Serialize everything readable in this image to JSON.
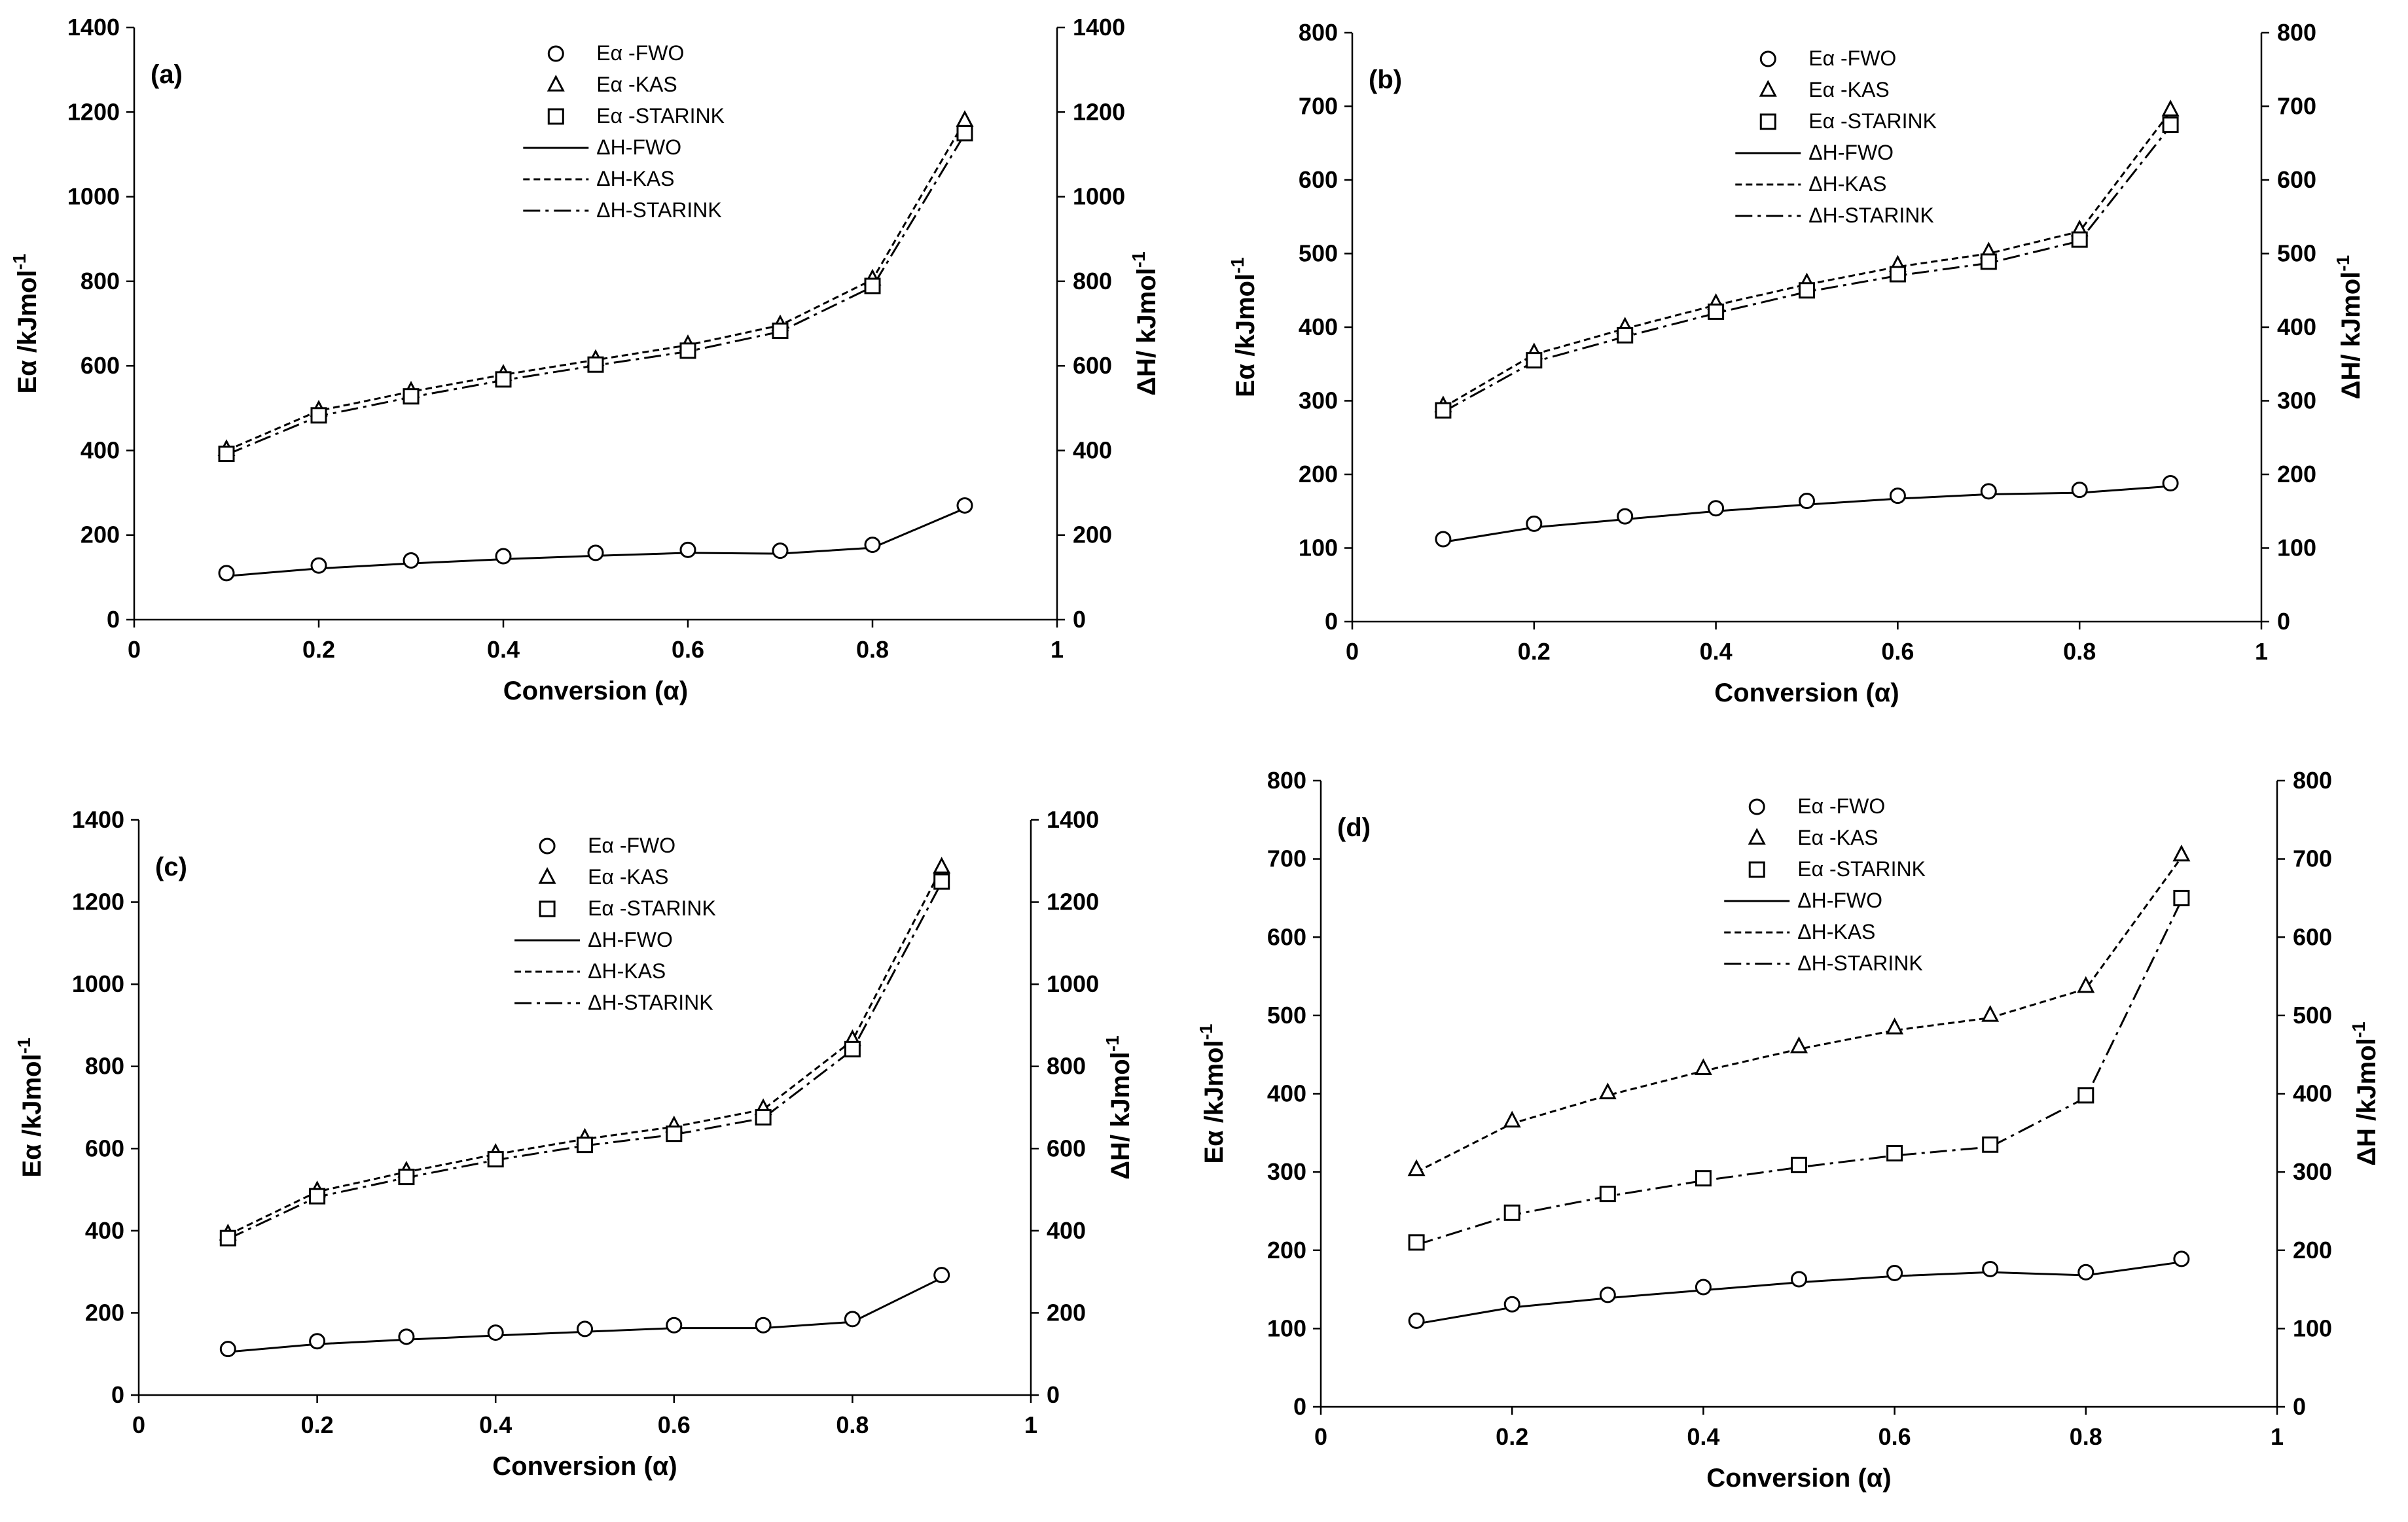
{
  "figure": {
    "panels": [
      "a",
      "b",
      "c",
      "d"
    ]
  },
  "chart_data": [
    {
      "type": "line",
      "panel_label": "(a)",
      "xlabel": "Conversion (α)",
      "ylabel_left": "Eα /kJmol-1",
      "ylabel_left_main": "Eα /kJmol",
      "ylabel_left_sup": "-1",
      "ylabel_right": "ΔH/ kJmol-1",
      "ylabel_right_main": "ΔH/ kJmol",
      "ylabel_right_sup": "-1",
      "xlim": [
        0,
        1
      ],
      "ylim": [
        0,
        1400
      ],
      "x_ticks": [
        "0",
        "0.2",
        "0.4",
        "0.6",
        "0.8",
        "1"
      ],
      "y_ticks": [
        "0",
        "200",
        "400",
        "600",
        "800",
        "1000",
        "1200",
        "1400"
      ],
      "legend_position": "top-center",
      "x": [
        0.1,
        0.2,
        0.3,
        0.4,
        0.5,
        0.6,
        0.7,
        0.8,
        0.9
      ],
      "series": [
        {
          "name": "Eα -FWO",
          "kind": "marker",
          "marker": "circle",
          "values": [
            110,
            128,
            140,
            150,
            158,
            165,
            163,
            177,
            270
          ]
        },
        {
          "name": "Eα -KAS",
          "kind": "marker",
          "marker": "triangle",
          "values": [
            402,
            495,
            540,
            580,
            615,
            650,
            697,
            805,
            1180
          ]
        },
        {
          "name": "Eα -STARINK",
          "kind": "marker",
          "marker": "square",
          "values": [
            392,
            483,
            528,
            568,
            603,
            636,
            683,
            789,
            1150
          ]
        },
        {
          "name": "ΔH-FWO",
          "kind": "line",
          "dash": "solid",
          "values": [
            103,
            121,
            133,
            143,
            151,
            158,
            156,
            170,
            263
          ]
        },
        {
          "name": "ΔH-KAS",
          "kind": "line",
          "dash": "dotted",
          "values": [
            400,
            494,
            539,
            579,
            614,
            649,
            696,
            804,
            1179
          ]
        },
        {
          "name": "ΔH-STARINK",
          "kind": "line",
          "dash": "dashdot",
          "values": [
            390,
            481,
            526,
            566,
            601,
            634,
            681,
            787,
            1148
          ]
        }
      ]
    },
    {
      "type": "line",
      "panel_label": "(b)",
      "xlabel": "Conversion (α)",
      "ylabel_left": "Eα /kJmol-1",
      "ylabel_left_main": "Eα /kJmol",
      "ylabel_left_sup": "-1",
      "ylabel_right": "ΔH/ kJmol-1",
      "ylabel_right_main": "ΔH/ kJmol",
      "ylabel_right_sup": "-1",
      "xlim": [
        0,
        1
      ],
      "ylim": [
        0,
        800
      ],
      "x_ticks": [
        "0",
        "0.2",
        "0.4",
        "0.6",
        "0.8",
        "1"
      ],
      "y_ticks": [
        "0",
        "100",
        "200",
        "300",
        "400",
        "500",
        "600",
        "700",
        "800"
      ],
      "legend_position": "top-center",
      "x": [
        0.1,
        0.2,
        0.3,
        0.4,
        0.5,
        0.6,
        0.7,
        0.8,
        0.9
      ],
      "series": [
        {
          "name": "Eα -FWO",
          "kind": "marker",
          "marker": "circle",
          "values": [
            112,
            133,
            143,
            154,
            164,
            171,
            177,
            179,
            188
          ]
        },
        {
          "name": "Eα -KAS",
          "kind": "marker",
          "marker": "triangle",
          "values": [
            293,
            365,
            400,
            432,
            460,
            484,
            502,
            532,
            695
          ]
        },
        {
          "name": "Eα -STARINK",
          "kind": "marker",
          "marker": "square",
          "values": [
            287,
            355,
            389,
            421,
            450,
            472,
            489,
            519,
            675
          ]
        },
        {
          "name": "ΔH-FWO",
          "kind": "line",
          "dash": "solid",
          "values": [
            108,
            128,
            139,
            150,
            159,
            167,
            173,
            175,
            184
          ]
        },
        {
          "name": "ΔH-KAS",
          "kind": "line",
          "dash": "dotted",
          "values": [
            291,
            363,
            398,
            430,
            458,
            482,
            500,
            530,
            693
          ]
        },
        {
          "name": "ΔH-STARINK",
          "kind": "line",
          "dash": "dashdot",
          "values": [
            285,
            353,
            387,
            419,
            448,
            470,
            487,
            517,
            673
          ]
        }
      ]
    },
    {
      "type": "line",
      "panel_label": "(c)",
      "xlabel": "Conversion (α)",
      "ylabel_left": "Eα /kJmol-1",
      "ylabel_left_main": "Eα /kJmol",
      "ylabel_left_sup": "-1",
      "ylabel_right": "ΔH/ kJmol-1",
      "ylabel_right_main": "ΔH/ kJmol",
      "ylabel_right_sup": "-1",
      "xlim": [
        0,
        1
      ],
      "ylim": [
        0,
        1400
      ],
      "x_ticks": [
        "0",
        "0.2",
        "0.4",
        "0.6",
        "0.8",
        "1"
      ],
      "y_ticks": [
        "0",
        "200",
        "400",
        "600",
        "800",
        "1000",
        "1200",
        "1400"
      ],
      "legend_position": "top-center",
      "x": [
        0.1,
        0.2,
        0.3,
        0.4,
        0.5,
        0.6,
        0.7,
        0.8,
        0.9
      ],
      "series": [
        {
          "name": "Eα -FWO",
          "kind": "marker",
          "marker": "circle",
          "values": [
            112,
            131,
            142,
            152,
            161,
            170,
            170,
            185,
            292
          ]
        },
        {
          "name": "Eα -KAS",
          "kind": "marker",
          "marker": "triangle",
          "values": [
            392,
            497,
            545,
            588,
            625,
            655,
            697,
            865,
            1285
          ]
        },
        {
          "name": "Eα -STARINK",
          "kind": "marker",
          "marker": "square",
          "values": [
            382,
            484,
            531,
            574,
            609,
            636,
            676,
            842,
            1250
          ]
        },
        {
          "name": "ΔH-FWO",
          "kind": "line",
          "dash": "solid",
          "values": [
            105,
            124,
            135,
            145,
            154,
            163,
            163,
            178,
            285
          ]
        },
        {
          "name": "ΔH-KAS",
          "kind": "line",
          "dash": "dotted",
          "values": [
            390,
            495,
            543,
            586,
            623,
            653,
            695,
            863,
            1283
          ]
        },
        {
          "name": "ΔH-STARINK",
          "kind": "line",
          "dash": "dashdot",
          "values": [
            380,
            482,
            529,
            572,
            607,
            634,
            674,
            840,
            1248
          ]
        }
      ]
    },
    {
      "type": "line",
      "panel_label": "(d)",
      "xlabel": "Conversion (α)",
      "ylabel_left": "Eα /kJmol-1",
      "ylabel_left_main": "Eα /kJmol",
      "ylabel_left_sup": "-1",
      "ylabel_right": "ΔH /kJmol-1",
      "ylabel_right_main": "ΔH /kJmol",
      "ylabel_right_sup": "-1",
      "xlim": [
        0,
        1
      ],
      "ylim": [
        0,
        800
      ],
      "x_ticks": [
        "0",
        "0.2",
        "0.4",
        "0.6",
        "0.8",
        "1"
      ],
      "y_ticks": [
        "0",
        "100",
        "200",
        "300",
        "400",
        "500",
        "600",
        "700",
        "800"
      ],
      "legend_position": "top-center",
      "x": [
        0.1,
        0.2,
        0.3,
        0.4,
        0.5,
        0.6,
        0.7,
        0.8,
        0.9
      ],
      "series": [
        {
          "name": "Eα -FWO",
          "kind": "marker",
          "marker": "circle",
          "values": [
            110,
            131,
            143,
            153,
            163,
            171,
            176,
            172,
            189
          ]
        },
        {
          "name": "Eα -KAS",
          "kind": "marker",
          "marker": "triangle",
          "values": [
            303,
            365,
            401,
            432,
            460,
            484,
            500,
            537,
            705
          ]
        },
        {
          "name": "Eα -STARINK",
          "kind": "marker",
          "marker": "square",
          "values": [
            210,
            248,
            272,
            292,
            309,
            324,
            335,
            398,
            650
          ]
        },
        {
          "name": "ΔH-FWO",
          "kind": "line",
          "dash": "solid",
          "values": [
            106,
            127,
            139,
            149,
            159,
            167,
            172,
            168,
            185
          ]
        },
        {
          "name": "ΔH-KAS",
          "kind": "line",
          "dash": "dotted",
          "values": [
            300,
            362,
            398,
            429,
            457,
            481,
            497,
            534,
            702
          ]
        },
        {
          "name": "ΔH-STARINK",
          "kind": "line",
          "dash": "dashdot",
          "values": [
            207,
            245,
            269,
            289,
            306,
            321,
            332,
            395,
            647
          ]
        }
      ]
    }
  ]
}
